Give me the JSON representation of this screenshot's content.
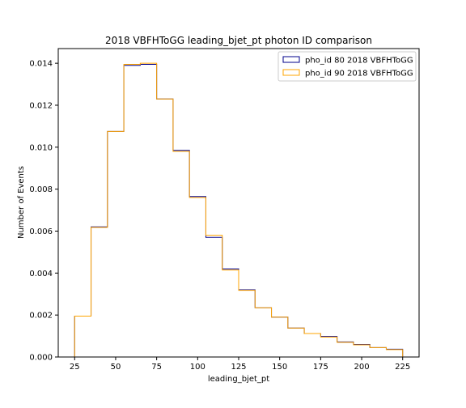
{
  "chart_data": {
    "type": "histogram-step",
    "title": "2018 VBFHToGG leading_bjet_pt photon ID comparison",
    "xlabel": "leading_bjet_pt",
    "ylabel": "Number of Events",
    "xlim": [
      15,
      235
    ],
    "ylim": [
      0,
      0.0147
    ],
    "xticks": [
      25,
      50,
      75,
      100,
      125,
      150,
      175,
      200,
      225
    ],
    "yticks": [
      0.0,
      0.002,
      0.004,
      0.006,
      0.008,
      0.01,
      0.012,
      0.014
    ],
    "ytick_labels": [
      "0.000",
      "0.002",
      "0.004",
      "0.006",
      "0.008",
      "0.010",
      "0.012",
      "0.014"
    ],
    "bin_edges": [
      25,
      35,
      45,
      55,
      65,
      75,
      85,
      95,
      105,
      115,
      125,
      135,
      145,
      155,
      165,
      175,
      185,
      195,
      205,
      215,
      225
    ],
    "legend_position": "top-right",
    "grid": false,
    "series": [
      {
        "name": "pho_id 80 2018 VBFHToGG",
        "color": "#00008b",
        "values": [
          0.00195,
          0.0062,
          0.01075,
          0.0139,
          0.01395,
          0.0123,
          0.00985,
          0.00765,
          0.0057,
          0.0042,
          0.0032,
          0.00235,
          0.0019,
          0.00138,
          0.00112,
          0.00098,
          0.00072,
          0.0006,
          0.00045,
          0.00037
        ]
      },
      {
        "name": "pho_id 90 2018 VBFHToGG",
        "color": "#ffa500",
        "values": [
          0.00195,
          0.00618,
          0.01075,
          0.01395,
          0.014,
          0.0123,
          0.0098,
          0.0076,
          0.0058,
          0.00415,
          0.00318,
          0.00235,
          0.0019,
          0.00138,
          0.00112,
          0.00095,
          0.0007,
          0.00058,
          0.00045,
          0.00035
        ]
      }
    ]
  }
}
